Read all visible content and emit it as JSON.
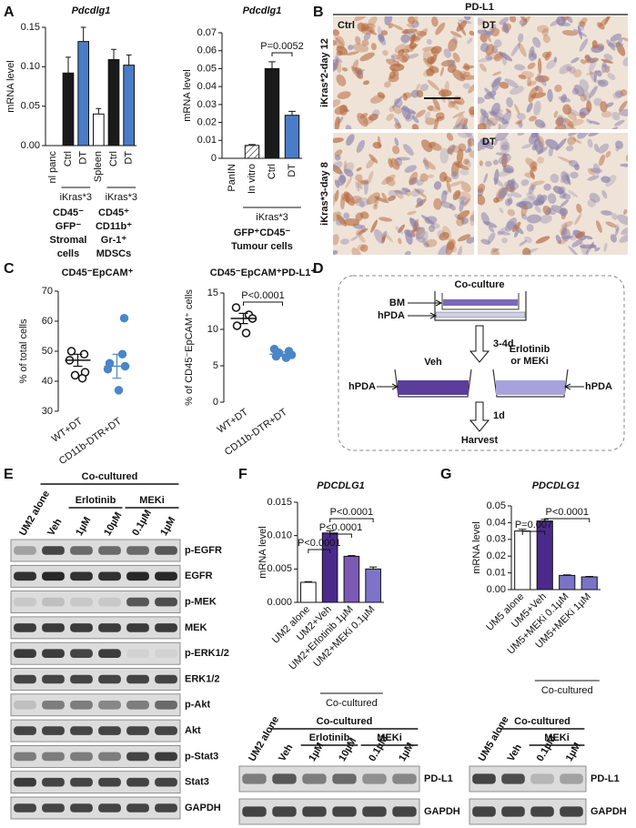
{
  "panel_labels": [
    "A",
    "B",
    "C",
    "D",
    "E",
    "F",
    "G"
  ],
  "chart_data": [
    {
      "type": "bar",
      "title": "Pdcdlg1",
      "y_label": "mRNA level",
      "categories": [
        "nl panc",
        "Ctrl",
        "DT",
        "Spleen",
        "Ctrl",
        "DT"
      ],
      "values": [
        0,
        0.092,
        0.132,
        0.04,
        0.109,
        0.102
      ],
      "errors": [
        null,
        0.02,
        0.018,
        0.007,
        0.013,
        0.013
      ],
      "colors": [
        "#ffffff",
        "#1a1a1a",
        "#4a7cc7",
        "#ffffff",
        "#1a1a1a",
        "#4a7cc7"
      ],
      "ylim": [
        0,
        0.15
      ],
      "yticks": [
        {
          "value": 0,
          "label": "0.00"
        },
        0.05,
        {
          "value": 0.1,
          "label": "0.10"
        },
        0.15
      ],
      "bracket_labels": [
        "iKras*3",
        "iKras*3"
      ],
      "group_labels": [
        [
          "CD45⁻",
          "GFP⁻",
          "Stromal",
          "cells"
        ],
        [
          "CD45⁺",
          "CD11b⁺",
          "Gr-1⁺",
          "MDSCs"
        ]
      ]
    },
    {
      "type": "bar",
      "title": "Pdcdlg1",
      "y_label": "mRNA level",
      "categories": [
        "PanIN",
        "In vitro",
        "Ctrl",
        "DT"
      ],
      "values": [
        0,
        0.0072,
        0.05,
        0.024
      ],
      "errors": [
        null,
        0.0005,
        0.0038,
        0.0022
      ],
      "colors": [
        "#ffffff",
        "#ffffff",
        "#1a1a1a",
        "#4a7cc7"
      ],
      "hatched": [
        false,
        true,
        false,
        false
      ],
      "ylim": [
        0,
        0.07
      ],
      "yticks": [
        0,
        0.01,
        0.02,
        0.03,
        0.04,
        0.05,
        0.06,
        0.07
      ],
      "annotations": [
        "P=0.0052"
      ],
      "bracket_labels": [
        "iKras*3"
      ],
      "group_labels": [
        [
          "GFP⁺CD45⁻",
          "Tumour cells"
        ]
      ]
    },
    {
      "type": "dot",
      "title": "CD45⁻EpCAM⁺",
      "y_label": "% of total cells",
      "categories": [
        "WT+DT",
        "CD11b-DTR+DT"
      ],
      "groups": [
        {
          "color": "#111111",
          "filled": false,
          "values": [
            50,
            49,
            47,
            43,
            42,
            41
          ],
          "mean": 47,
          "sem": 2
        },
        {
          "color": "#4a86c8",
          "filled": true,
          "values": [
            61,
            49,
            46,
            45,
            44,
            37
          ],
          "mean": 45,
          "sem": 4
        }
      ],
      "ylim": [
        30,
        70
      ],
      "yticks": [
        30,
        40,
        50,
        60,
        70
      ]
    },
    {
      "type": "dot",
      "title": "CD45⁻EpCAM⁺PD-L1⁺",
      "y_label": "% of CD45⁻EpCAM⁺ cells",
      "categories": [
        "WT+DT",
        "CD11b-DTR+DT"
      ],
      "groups": [
        {
          "color": "#111111",
          "filled": false,
          "values": [
            13,
            12,
            11.5,
            10.5,
            9.5
          ],
          "mean": 11.5,
          "sem": 0.7
        },
        {
          "color": "#4a86c8",
          "filled": true,
          "values": [
            7.3,
            7,
            6.8,
            6.5,
            6.3,
            6.1
          ],
          "mean": 6.6,
          "sem": 0.3
        }
      ],
      "ylim": [
        0,
        15
      ],
      "yticks": [
        0,
        5,
        10,
        15
      ],
      "annotations": [
        "P<0.0001"
      ]
    },
    {
      "type": "bar",
      "title": "PDCDLG1",
      "y_label": "mRNA level",
      "categories": [
        "UM2 alone",
        "UM2+Veh",
        "UM2+Erlotinib 1µM",
        "UM2+MEKi 0.1µM"
      ],
      "values": [
        0.003,
        0.0104,
        0.0069,
        0.005
      ],
      "errors": [
        0.0001,
        0.0003,
        0.0001,
        0.0003
      ],
      "colors": [
        "#ffffff",
        "#4b2a8c",
        "#7b5ab5",
        "#7e73c8"
      ],
      "ylim": [
        0,
        0.015
      ],
      "yticks": [
        {
          "value": 0,
          "label": "0.000"
        },
        0.005,
        {
          "value": 0.01,
          "label": "0.010"
        },
        0.015
      ],
      "annotations": [
        "P<0.0001",
        "P<0.0001",
        "P<0.0001"
      ],
      "bracket_labels": [
        "Co-cultured"
      ]
    },
    {
      "type": "bar",
      "title": "PDCDLG1",
      "y_label": "mRNA level",
      "categories": [
        "UM5 alone",
        "UM5+Veh",
        "UM5+MEKi 0.1µM",
        "UM5+MEKi 1µM"
      ],
      "values": [
        0.035,
        0.041,
        0.0085,
        0.0076
      ],
      "errors": [
        0.001,
        0.001,
        0.0003,
        0.0003
      ],
      "colors": [
        "#ffffff",
        "#4b2a8c",
        "#7b73c6",
        "#7b73c6"
      ],
      "ylim": [
        0,
        0.05
      ],
      "yticks": [
        {
          "value": 0,
          "label": "0.00"
        },
        0.01,
        0.02,
        0.03,
        0.04,
        0.05
      ],
      "annotations": [
        "P=0.007",
        "P<0.0001"
      ],
      "bracket_labels": [
        "Co-cultured"
      ]
    }
  ],
  "ihc": {
    "title": "PD-L1",
    "conditions": [
      "Ctrl",
      "DT",
      "DT"
    ],
    "models": [
      "iKras*2-day 12",
      "iKras*3-day 8"
    ]
  },
  "diagram": {
    "title": "Co-culture",
    "bm": "BM",
    "hpda": "hPDA",
    "step1": "3-4d",
    "veh": "Veh",
    "treatment": [
      "Erlotinib",
      "or MEKi"
    ],
    "step2": "1d",
    "end": "Harvest"
  },
  "blots": [
    {
      "group": "Co-cultured",
      "treatments": [
        "Erlotinib",
        "MEKi"
      ],
      "lanes": [
        "UM2 alone",
        "Veh",
        "1µM",
        "10µM",
        "0.1µM",
        "1µM"
      ],
      "rows": [
        "p-EGFR",
        "EGFR",
        "p-MEK",
        "MEK",
        "p-ERK1/2",
        "ERK1/2",
        "p-Akt",
        "Akt",
        "p-Stat3",
        "Stat3",
        "GAPDH"
      ]
    },
    {
      "group": "Co-cultured",
      "treatments": [
        "Erlotinib",
        "MEKi"
      ],
      "lanes": [
        "UM2 alone",
        "Veh",
        "1µM",
        "10µM",
        "0.1µM",
        "1µM"
      ],
      "rows": [
        "PD-L1",
        "GAPDH"
      ]
    },
    {
      "group": "Co-cultured",
      "treatments": [
        "MEKi"
      ],
      "lanes": [
        "UM5 alone",
        "Veh",
        "0.1µM",
        "1µM"
      ],
      "rows": [
        "PD-L1",
        "GAPDH"
      ]
    }
  ]
}
